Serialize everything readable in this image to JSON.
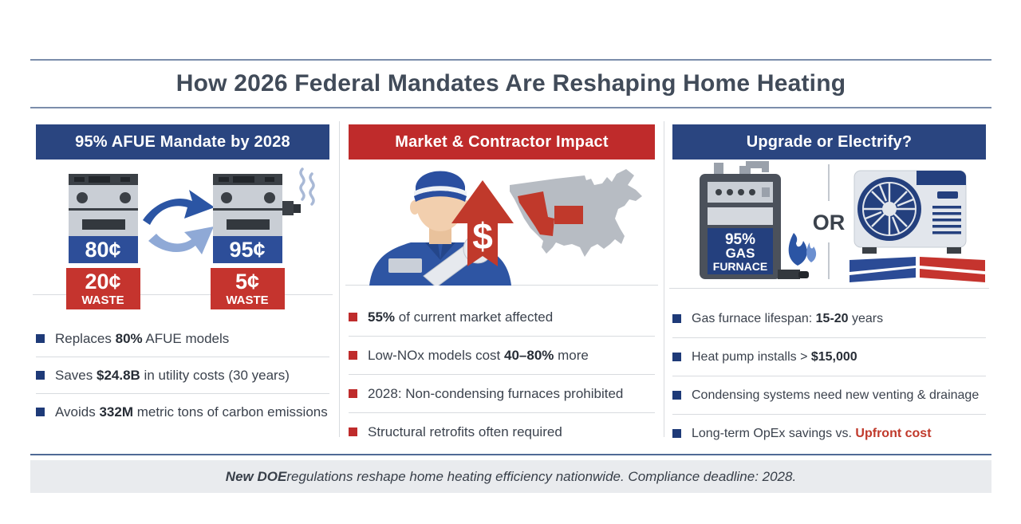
{
  "page": {
    "title": "How 2026 Federal Mandates Are Reshaping Home Heating",
    "footer": {
      "lead": "New DOE",
      "rest": " regulations reshape home heating efficiency nationwide. Compliance deadline: 2028."
    }
  },
  "colors": {
    "navy_header": "#2a4580",
    "red_header": "#bf2b2b",
    "navy_bullet": "#1e3a78",
    "red_bullet": "#bf2b2b",
    "efficiency_band_blue": "#2d4e99",
    "waste_red": "#c5342e",
    "highlight_red": "#c0392b",
    "footer_bg": "#e9ebee"
  },
  "columns": [
    {
      "id": "afue-mandate",
      "header": "95% AFUE Mandate by 2028",
      "header_color": "#2a4580",
      "bullet_color": "#1e3a78",
      "illustration": {
        "old_furnace": {
          "efficiency": "80¢",
          "waste_amount": "20¢",
          "waste_label": "WASTE"
        },
        "new_furnace": {
          "efficiency": "95¢",
          "waste_amount": "5¢",
          "waste_label": "WASTE"
        },
        "icons": [
          "old-furnace-icon",
          "transition-arrows-icon",
          "new-furnace-icon",
          "steam-icon"
        ]
      },
      "bullets": [
        [
          {
            "t": "Replaces "
          },
          {
            "t": "80%",
            "b": true
          },
          {
            "t": " AFUE models"
          }
        ],
        [
          {
            "t": "Saves "
          },
          {
            "t": "$24.8B",
            "b": true
          },
          {
            "t": " in utility costs (30 years)"
          }
        ],
        [
          {
            "t": "Avoids "
          },
          {
            "t": "332M",
            "b": true
          },
          {
            "t": " metric tons of carbon emissions"
          }
        ]
      ]
    },
    {
      "id": "market-contractor-impact",
      "header": "Market & Contractor Impact",
      "header_color": "#bf2b2b",
      "bullet_color": "#bf2b2b",
      "illustration": {
        "dollar_sign": "$",
        "icons": [
          "contractor-icon",
          "cost-increase-arrow-icon",
          "us-map-icon"
        ]
      },
      "bullets": [
        [
          {
            "t": "55%",
            "b": true
          },
          {
            "t": " of current market affected"
          }
        ],
        [
          {
            "t": "Low-NOx models cost "
          },
          {
            "t": "40–80%",
            "b": true
          },
          {
            "t": " more"
          }
        ],
        [
          {
            "t": "2028: Non-condensing furnaces prohibited"
          }
        ],
        [
          {
            "t": "Structural retrofits often required"
          }
        ]
      ]
    },
    {
      "id": "upgrade-or-electrify",
      "header": "Upgrade or Electrify?",
      "header_color": "#2a4580",
      "bullet_color": "#1e3a78",
      "illustration": {
        "furnace_label_line1": "95%",
        "furnace_label_line2": "GAS",
        "furnace_label_line3": "FURNACE",
        "or_label": "OR",
        "icons": [
          "gas-furnace-icon",
          "flame-icon",
          "heat-pump-icon",
          "airflow-bars-icon"
        ]
      },
      "bullets": [
        [
          {
            "t": "Gas furnace lifespan: "
          },
          {
            "t": "15-20",
            "b": true
          },
          {
            "t": " years"
          }
        ],
        [
          {
            "t": "Heat pump installs > "
          },
          {
            "t": "$15,000",
            "b": true
          }
        ],
        [
          {
            "t": "Condensing systems need new venting & drainage"
          }
        ],
        [
          {
            "t": "Long-term OpEx savings vs. "
          },
          {
            "t": "Upfront cost",
            "b": true,
            "c": "#c0392b"
          }
        ]
      ]
    }
  ]
}
